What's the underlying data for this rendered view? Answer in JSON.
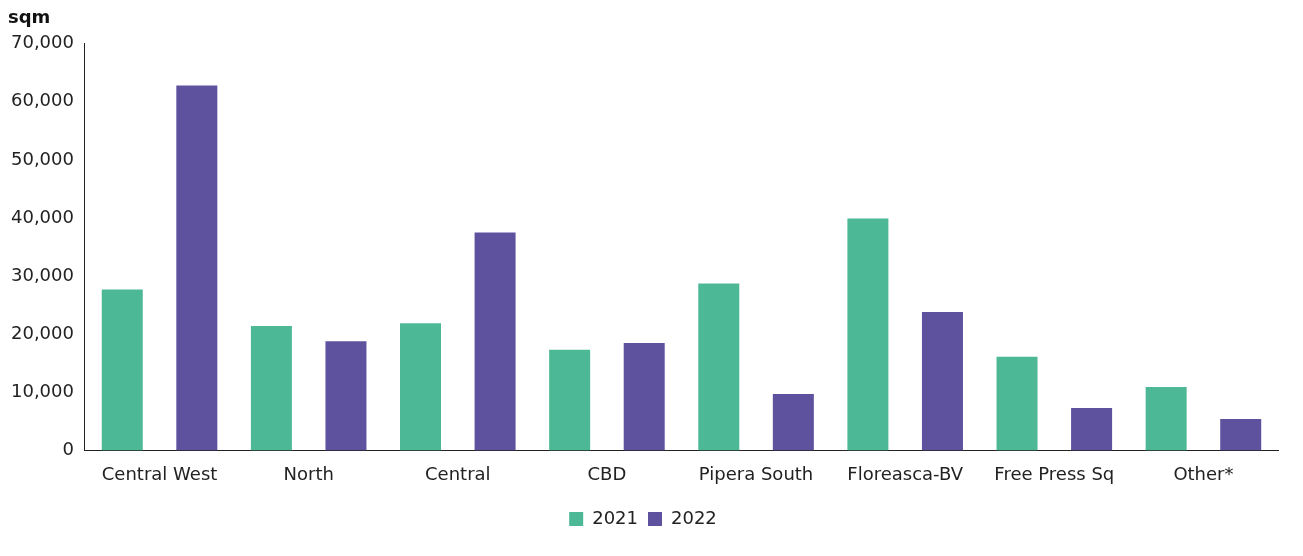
{
  "chart_data": {
    "type": "bar",
    "ylabel": "sqm",
    "categories": [
      "Central West",
      "North",
      "Central",
      "CBD",
      "Pipera South",
      "Floreasca-BV",
      "Free Press Sq",
      "Other*"
    ],
    "series": [
      {
        "name": "2021",
        "color": "#4db896",
        "values": [
          27700,
          21400,
          21900,
          17300,
          28700,
          39900,
          16100,
          10900
        ]
      },
      {
        "name": "2022",
        "color": "#5e529f",
        "values": [
          62800,
          18800,
          37500,
          18500,
          9700,
          23800,
          7300,
          5400
        ]
      }
    ],
    "ylim": [
      0,
      70000
    ],
    "yticks": [
      0,
      {
        "value": 10000,
        "label": "10,000"
      },
      {
        "value": 20000,
        "label": "20,000"
      },
      {
        "value": 30000,
        "label": "30,000"
      },
      {
        "value": 40000,
        "label": "40,000"
      },
      {
        "value": 50000,
        "label": "50,000"
      },
      {
        "value": 60000,
        "label": "60,000"
      },
      {
        "value": 70000,
        "label": "70,000"
      }
    ],
    "grid": false,
    "legend": "bottom"
  }
}
